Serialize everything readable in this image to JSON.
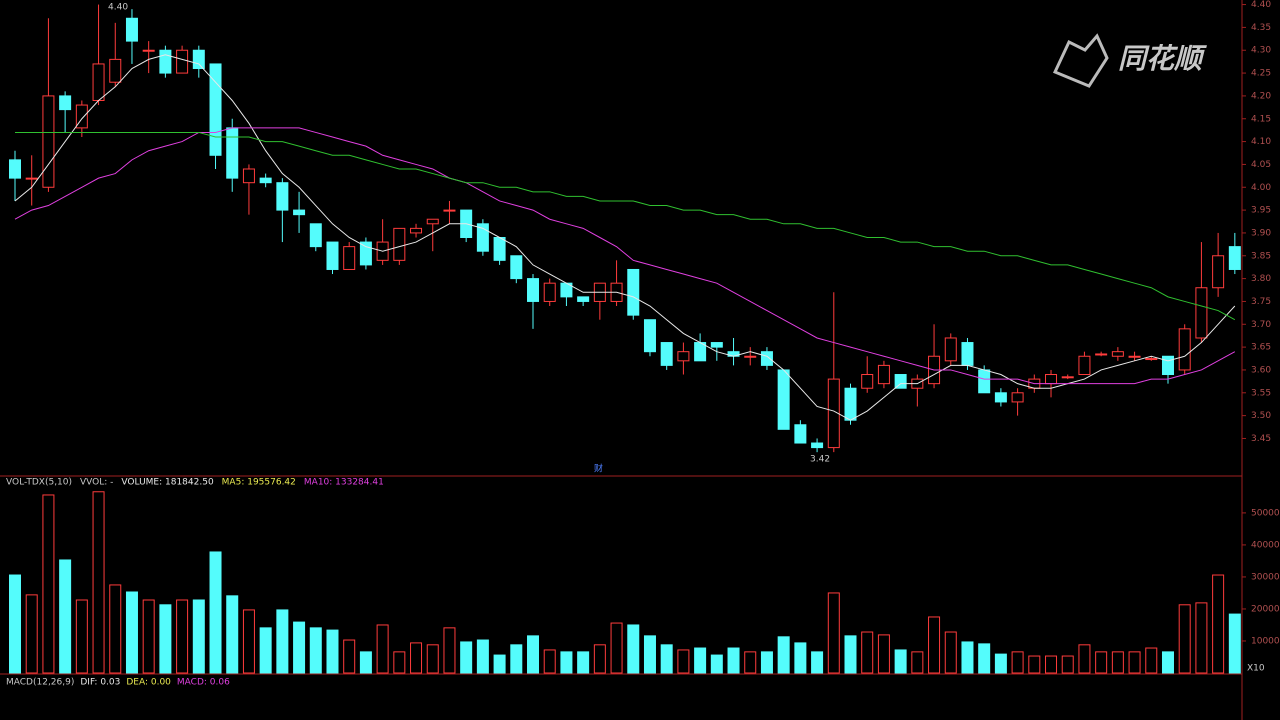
{
  "logo": "同花顺",
  "chart_data": [
    {
      "type": "candlestick",
      "up_color": "#ff3c3c",
      "down_color": "#54fcfc",
      "open": [
        4.06,
        4.02,
        4.0,
        4.2,
        4.13,
        4.19,
        4.23,
        4.37,
        4.3,
        4.3,
        4.25,
        4.3,
        4.27,
        4.13,
        4.01,
        4.02,
        4.01,
        3.95,
        3.92,
        3.88,
        3.82,
        3.88,
        3.84,
        3.84,
        3.9,
        3.92,
        3.95,
        3.95,
        3.92,
        3.89,
        3.85,
        3.8,
        3.75,
        3.79,
        3.76,
        3.75,
        3.75,
        3.82,
        3.71,
        3.66,
        3.62,
        3.66,
        3.66,
        3.64,
        3.63,
        3.64,
        3.6,
        3.48,
        3.44,
        3.43,
        3.56,
        3.56,
        3.57,
        3.59,
        3.56,
        3.57,
        3.62,
        3.66,
        3.6,
        3.55,
        3.53,
        3.56,
        3.57,
        3.585,
        3.59,
        3.635,
        3.63,
        3.63,
        3.625,
        3.63,
        3.6,
        3.67,
        3.78,
        3.87
      ],
      "high": [
        4.08,
        4.07,
        4.37,
        4.21,
        4.19,
        4.4,
        4.36,
        4.39,
        4.32,
        4.31,
        4.31,
        4.31,
        4.27,
        4.15,
        4.05,
        4.03,
        4.02,
        3.99,
        3.92,
        3.88,
        3.88,
        3.89,
        3.93,
        3.91,
        3.92,
        3.93,
        3.97,
        3.95,
        3.93,
        3.89,
        3.85,
        3.81,
        3.8,
        3.79,
        3.76,
        3.79,
        3.84,
        3.82,
        3.71,
        3.66,
        3.66,
        3.68,
        3.66,
        3.67,
        3.65,
        3.65,
        3.6,
        3.49,
        3.45,
        3.77,
        3.57,
        3.63,
        3.62,
        3.59,
        3.59,
        3.7,
        3.68,
        3.67,
        3.61,
        3.56,
        3.56,
        3.59,
        3.6,
        3.59,
        3.64,
        3.64,
        3.65,
        3.64,
        3.63,
        3.63,
        3.7,
        3.88,
        3.9,
        3.9
      ],
      "low": [
        3.97,
        3.96,
        3.99,
        4.12,
        4.11,
        4.18,
        4.22,
        4.27,
        4.25,
        4.24,
        4.25,
        4.24,
        4.04,
        3.99,
        3.94,
        4.0,
        3.88,
        3.9,
        3.86,
        3.81,
        3.82,
        3.82,
        3.83,
        3.83,
        3.89,
        3.86,
        3.92,
        3.88,
        3.85,
        3.83,
        3.79,
        3.69,
        3.74,
        3.74,
        3.74,
        3.71,
        3.74,
        3.71,
        3.63,
        3.6,
        3.59,
        3.62,
        3.62,
        3.61,
        3.61,
        3.6,
        3.47,
        3.44,
        3.42,
        3.42,
        3.48,
        3.55,
        3.56,
        3.56,
        3.52,
        3.56,
        3.61,
        3.6,
        3.55,
        3.52,
        3.5,
        3.55,
        3.54,
        3.58,
        3.59,
        3.63,
        3.62,
        3.62,
        3.62,
        3.57,
        3.59,
        3.66,
        3.76,
        3.81
      ],
      "close": [
        4.02,
        4.02,
        4.2,
        4.17,
        4.18,
        4.27,
        4.28,
        4.32,
        4.3,
        4.25,
        4.3,
        4.26,
        4.07,
        4.02,
        4.04,
        4.01,
        3.95,
        3.94,
        3.87,
        3.82,
        3.87,
        3.83,
        3.88,
        3.91,
        3.91,
        3.93,
        3.95,
        3.89,
        3.86,
        3.84,
        3.8,
        3.75,
        3.79,
        3.76,
        3.75,
        3.79,
        3.79,
        3.72,
        3.64,
        3.61,
        3.64,
        3.62,
        3.65,
        3.63,
        3.63,
        3.61,
        3.47,
        3.44,
        3.43,
        3.58,
        3.49,
        3.59,
        3.61,
        3.56,
        3.58,
        3.63,
        3.67,
        3.61,
        3.55,
        3.53,
        3.55,
        3.58,
        3.59,
        3.585,
        3.63,
        3.635,
        3.64,
        3.63,
        3.625,
        3.59,
        3.69,
        3.78,
        3.85,
        3.82
      ],
      "series": [
        {
          "color": "#e8e8e8",
          "values": [
            3.97,
            4.0,
            4.05,
            4.1,
            4.15,
            4.19,
            4.22,
            4.26,
            4.28,
            4.29,
            4.28,
            4.27,
            4.23,
            4.19,
            4.14,
            4.08,
            4.03,
            4.0,
            3.96,
            3.92,
            3.89,
            3.87,
            3.86,
            3.87,
            3.88,
            3.9,
            3.92,
            3.92,
            3.91,
            3.89,
            3.87,
            3.83,
            3.81,
            3.79,
            3.77,
            3.77,
            3.77,
            3.76,
            3.74,
            3.71,
            3.68,
            3.66,
            3.64,
            3.63,
            3.64,
            3.63,
            3.6,
            3.56,
            3.52,
            3.51,
            3.49,
            3.51,
            3.54,
            3.57,
            3.57,
            3.59,
            3.61,
            3.61,
            3.6,
            3.59,
            3.57,
            3.56,
            3.56,
            3.57,
            3.58,
            3.6,
            3.61,
            3.62,
            3.63,
            3.62,
            3.63,
            3.66,
            3.7,
            3.74
          ]
        },
        {
          "color": "#e040e0",
          "values": [
            3.93,
            3.95,
            3.96,
            3.98,
            4.0,
            4.02,
            4.03,
            4.06,
            4.08,
            4.09,
            4.1,
            4.12,
            4.12,
            4.13,
            4.13,
            4.13,
            4.13,
            4.13,
            4.12,
            4.11,
            4.1,
            4.09,
            4.07,
            4.06,
            4.05,
            4.04,
            4.02,
            4.01,
            3.99,
            3.97,
            3.96,
            3.95,
            3.93,
            3.92,
            3.91,
            3.89,
            3.87,
            3.84,
            3.83,
            3.82,
            3.81,
            3.8,
            3.79,
            3.77,
            3.75,
            3.73,
            3.71,
            3.69,
            3.67,
            3.66,
            3.65,
            3.64,
            3.63,
            3.62,
            3.61,
            3.6,
            3.6,
            3.59,
            3.58,
            3.58,
            3.58,
            3.57,
            3.57,
            3.57,
            3.57,
            3.57,
            3.57,
            3.57,
            3.58,
            3.58,
            3.59,
            3.6,
            3.62,
            3.64
          ]
        },
        {
          "color": "#30c030",
          "values": [
            4.12,
            4.12,
            4.12,
            4.12,
            4.12,
            4.12,
            4.12,
            4.12,
            4.12,
            4.12,
            4.12,
            4.12,
            4.11,
            4.11,
            4.11,
            4.1,
            4.1,
            4.09,
            4.08,
            4.07,
            4.07,
            4.06,
            4.05,
            4.04,
            4.04,
            4.03,
            4.02,
            4.01,
            4.01,
            4.0,
            4.0,
            3.99,
            3.99,
            3.98,
            3.98,
            3.97,
            3.97,
            3.97,
            3.96,
            3.96,
            3.95,
            3.95,
            3.94,
            3.94,
            3.93,
            3.93,
            3.92,
            3.92,
            3.91,
            3.91,
            3.9,
            3.89,
            3.89,
            3.88,
            3.88,
            3.87,
            3.87,
            3.86,
            3.86,
            3.85,
            3.85,
            3.84,
            3.83,
            3.83,
            3.82,
            3.81,
            3.8,
            3.79,
            3.78,
            3.76,
            3.75,
            3.74,
            3.73,
            3.71
          ]
        }
      ],
      "ylim": [
        3.37,
        4.41
      ],
      "yticks": [
        {
          "value": 4.4,
          "label": "4.40"
        },
        4.35,
        {
          "value": 4.3,
          "label": "4.30"
        },
        4.25,
        {
          "value": 4.2,
          "label": "4.20"
        },
        4.15,
        {
          "value": 4.1,
          "label": "4.10"
        },
        4.05,
        {
          "value": 4.0,
          "label": "4.00"
        },
        3.95,
        {
          "value": 3.9,
          "label": "3.90"
        },
        3.85,
        {
          "value": 3.8,
          "label": "3.80"
        },
        3.75,
        {
          "value": 3.7,
          "label": "3.70"
        },
        3.65,
        {
          "value": 3.6,
          "label": "3.60"
        },
        3.55,
        {
          "value": 3.5,
          "label": "3.50"
        },
        3.45
      ],
      "max_label": "4.40",
      "min_label": "3.42",
      "marker": "财"
    },
    {
      "type": "bar",
      "legend_items": [
        "VOL-TDX(5,10)",
        "VVOL: -",
        "VOLUME: 181842.50",
        "MA5: 195576.42",
        "MA10: 133284.41"
      ],
      "values": [
        30600,
        24400,
        55600,
        35300,
        22800,
        56600,
        27500,
        25300,
        22800,
        21300,
        22800,
        22800,
        37800,
        24100,
        19700,
        14100,
        19700,
        15900,
        14100,
        13400,
        10300,
        6600,
        15000,
        6600,
        9400,
        8800,
        14100,
        9700,
        10300,
        5600,
        8800,
        11600,
        7200,
        6600,
        6600,
        8800,
        15600,
        15000,
        11600,
        8800,
        7200,
        7800,
        5600,
        7800,
        6600,
        6600,
        11300,
        9400,
        6600,
        25000,
        11600,
        12800,
        11900,
        7200,
        6600,
        17500,
        12800,
        9700,
        9100,
        5900,
        6600,
        5300,
        5300,
        5300,
        8800,
        6600,
        6600,
        6600,
        7800,
        6600,
        21300,
        21900,
        30600,
        18400
      ],
      "ylim": [
        0,
        60900
      ],
      "yticks": [
        10000,
        20000,
        30000,
        40000,
        50000
      ],
      "unit_label": "X10"
    },
    {
      "type": "macd",
      "legend_items": [
        "MACD(12,26,9)",
        "DIF: 0.03",
        "DEA: 0.00",
        "MACD: 0.06"
      ]
    }
  ]
}
